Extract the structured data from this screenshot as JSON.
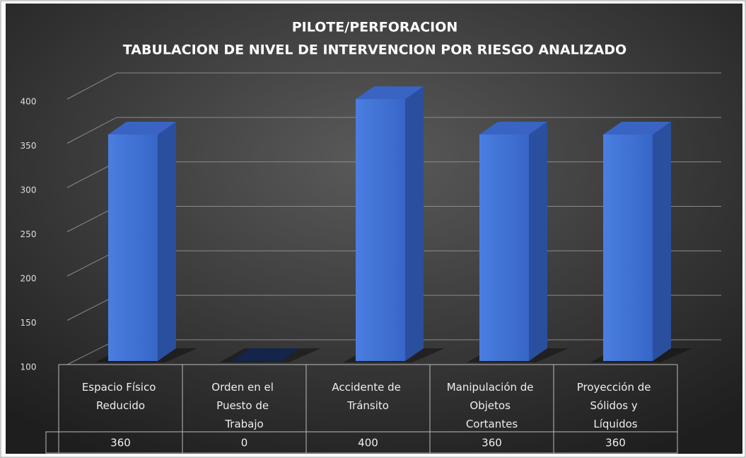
{
  "chart_data": {
    "type": "bar3d",
    "title": "PILOTE/PERFORACION",
    "subtitle": "TABULACION DE NIVEL DE INTERVENCION POR RIESGO ANALIZADO",
    "categories": [
      "Espacio Físico Reducido",
      "Orden en el Puesto de Trabajo",
      "Accidente de Tránsito",
      "Manipulación de Objetos Cortantes",
      "Proyección de Sólidos y Líquidos"
    ],
    "values": [
      360,
      0,
      400,
      360,
      360
    ],
    "color": "#3f6fd6",
    "ylim": [
      100,
      400
    ],
    "yticks": [
      100,
      150,
      200,
      250,
      300,
      350,
      400
    ],
    "grid": true,
    "data_table": true
  }
}
